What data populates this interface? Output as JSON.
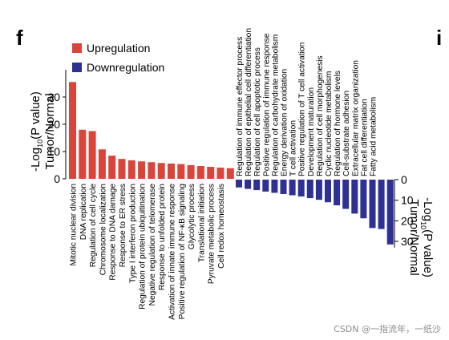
{
  "panel_letter_left": "f",
  "panel_letter_right": "i",
  "watermark": "CSDN @一指流年，一纸沙",
  "chart_data": [
    {
      "type": "bar",
      "series": [
        {
          "name": "Upregulation",
          "color": "#d9453b",
          "values": [
            35.5,
            18,
            17.5,
            10.8,
            8.5,
            7.3,
            6.8,
            6.4,
            6.1,
            5.8,
            5.6,
            5.4,
            5.0,
            4.7,
            4.4,
            4.1,
            3.9
          ]
        }
      ],
      "categories": [
        "Mitotic nuclear division",
        "DNA replication",
        "Regulation of cell cycle",
        "Chromosome localization",
        "Response to DNA damage",
        "Response to ER stress",
        "Type I interferon production",
        "Regulation of protein ubiquitination",
        "Negative regulation of telomerase",
        "Response to unfolded protein",
        "Activation of innate immune response",
        "Positive regulation of NF-κB signaling",
        "Glycolytic process",
        "Translational initiation",
        "Pyruvate metabolic process",
        "Cell redox homeostasis",
        ""
      ],
      "ylabel_line1": "-Log",
      "ylabel_sub": "10",
      "ylabel_line1_tail": "(P value)",
      "ylabel_line2": "Tumor/Normal",
      "yticks": [
        0,
        10,
        20,
        30
      ],
      "ylim": [
        0,
        40
      ]
    },
    {
      "type": "bar",
      "series": [
        {
          "name": "Downregulation",
          "color": "#2e3192",
          "values": [
            3.8,
            4.5,
            5.1,
            5.8,
            6.4,
            7.0,
            7.6,
            8.2,
            9.0,
            9.8,
            11.0,
            12.5,
            14.2,
            16.5,
            18.8,
            23.5,
            24.0,
            31.5
          ]
        }
      ],
      "categories": [
        "Regulation of immune effector process",
        "Regulation of epithelial cell differentiation",
        "Regulation of cell apoptotic process",
        "Positive regulation of immune response",
        "Regulation of carbohydrate metabolism",
        "Energy derivation of oxidation",
        "T cell activation",
        "Positive regulation of T cell activation",
        "Development maturation",
        "Regulation of cell morphogenesis",
        "Cyclic nucleotide metabolism",
        "Regulation of hormone levels",
        "Cell-substrate adhesion",
        "Extracellular matrix organization",
        "Fat cell differentiation",
        "Fatty acid metabolism",
        "",
        ""
      ],
      "ylabel_line1": "-Log",
      "ylabel_sub": "10",
      "ylabel_line1_tail": "(P value)",
      "ylabel_line2": "Tumor/Normal",
      "yticks": [
        0,
        10,
        20,
        30
      ],
      "ylim": [
        0,
        33
      ]
    }
  ],
  "legend": [
    {
      "label": "Upregulation",
      "color": "#d9453b"
    },
    {
      "label": "Downregulation",
      "color": "#2e3192"
    }
  ]
}
